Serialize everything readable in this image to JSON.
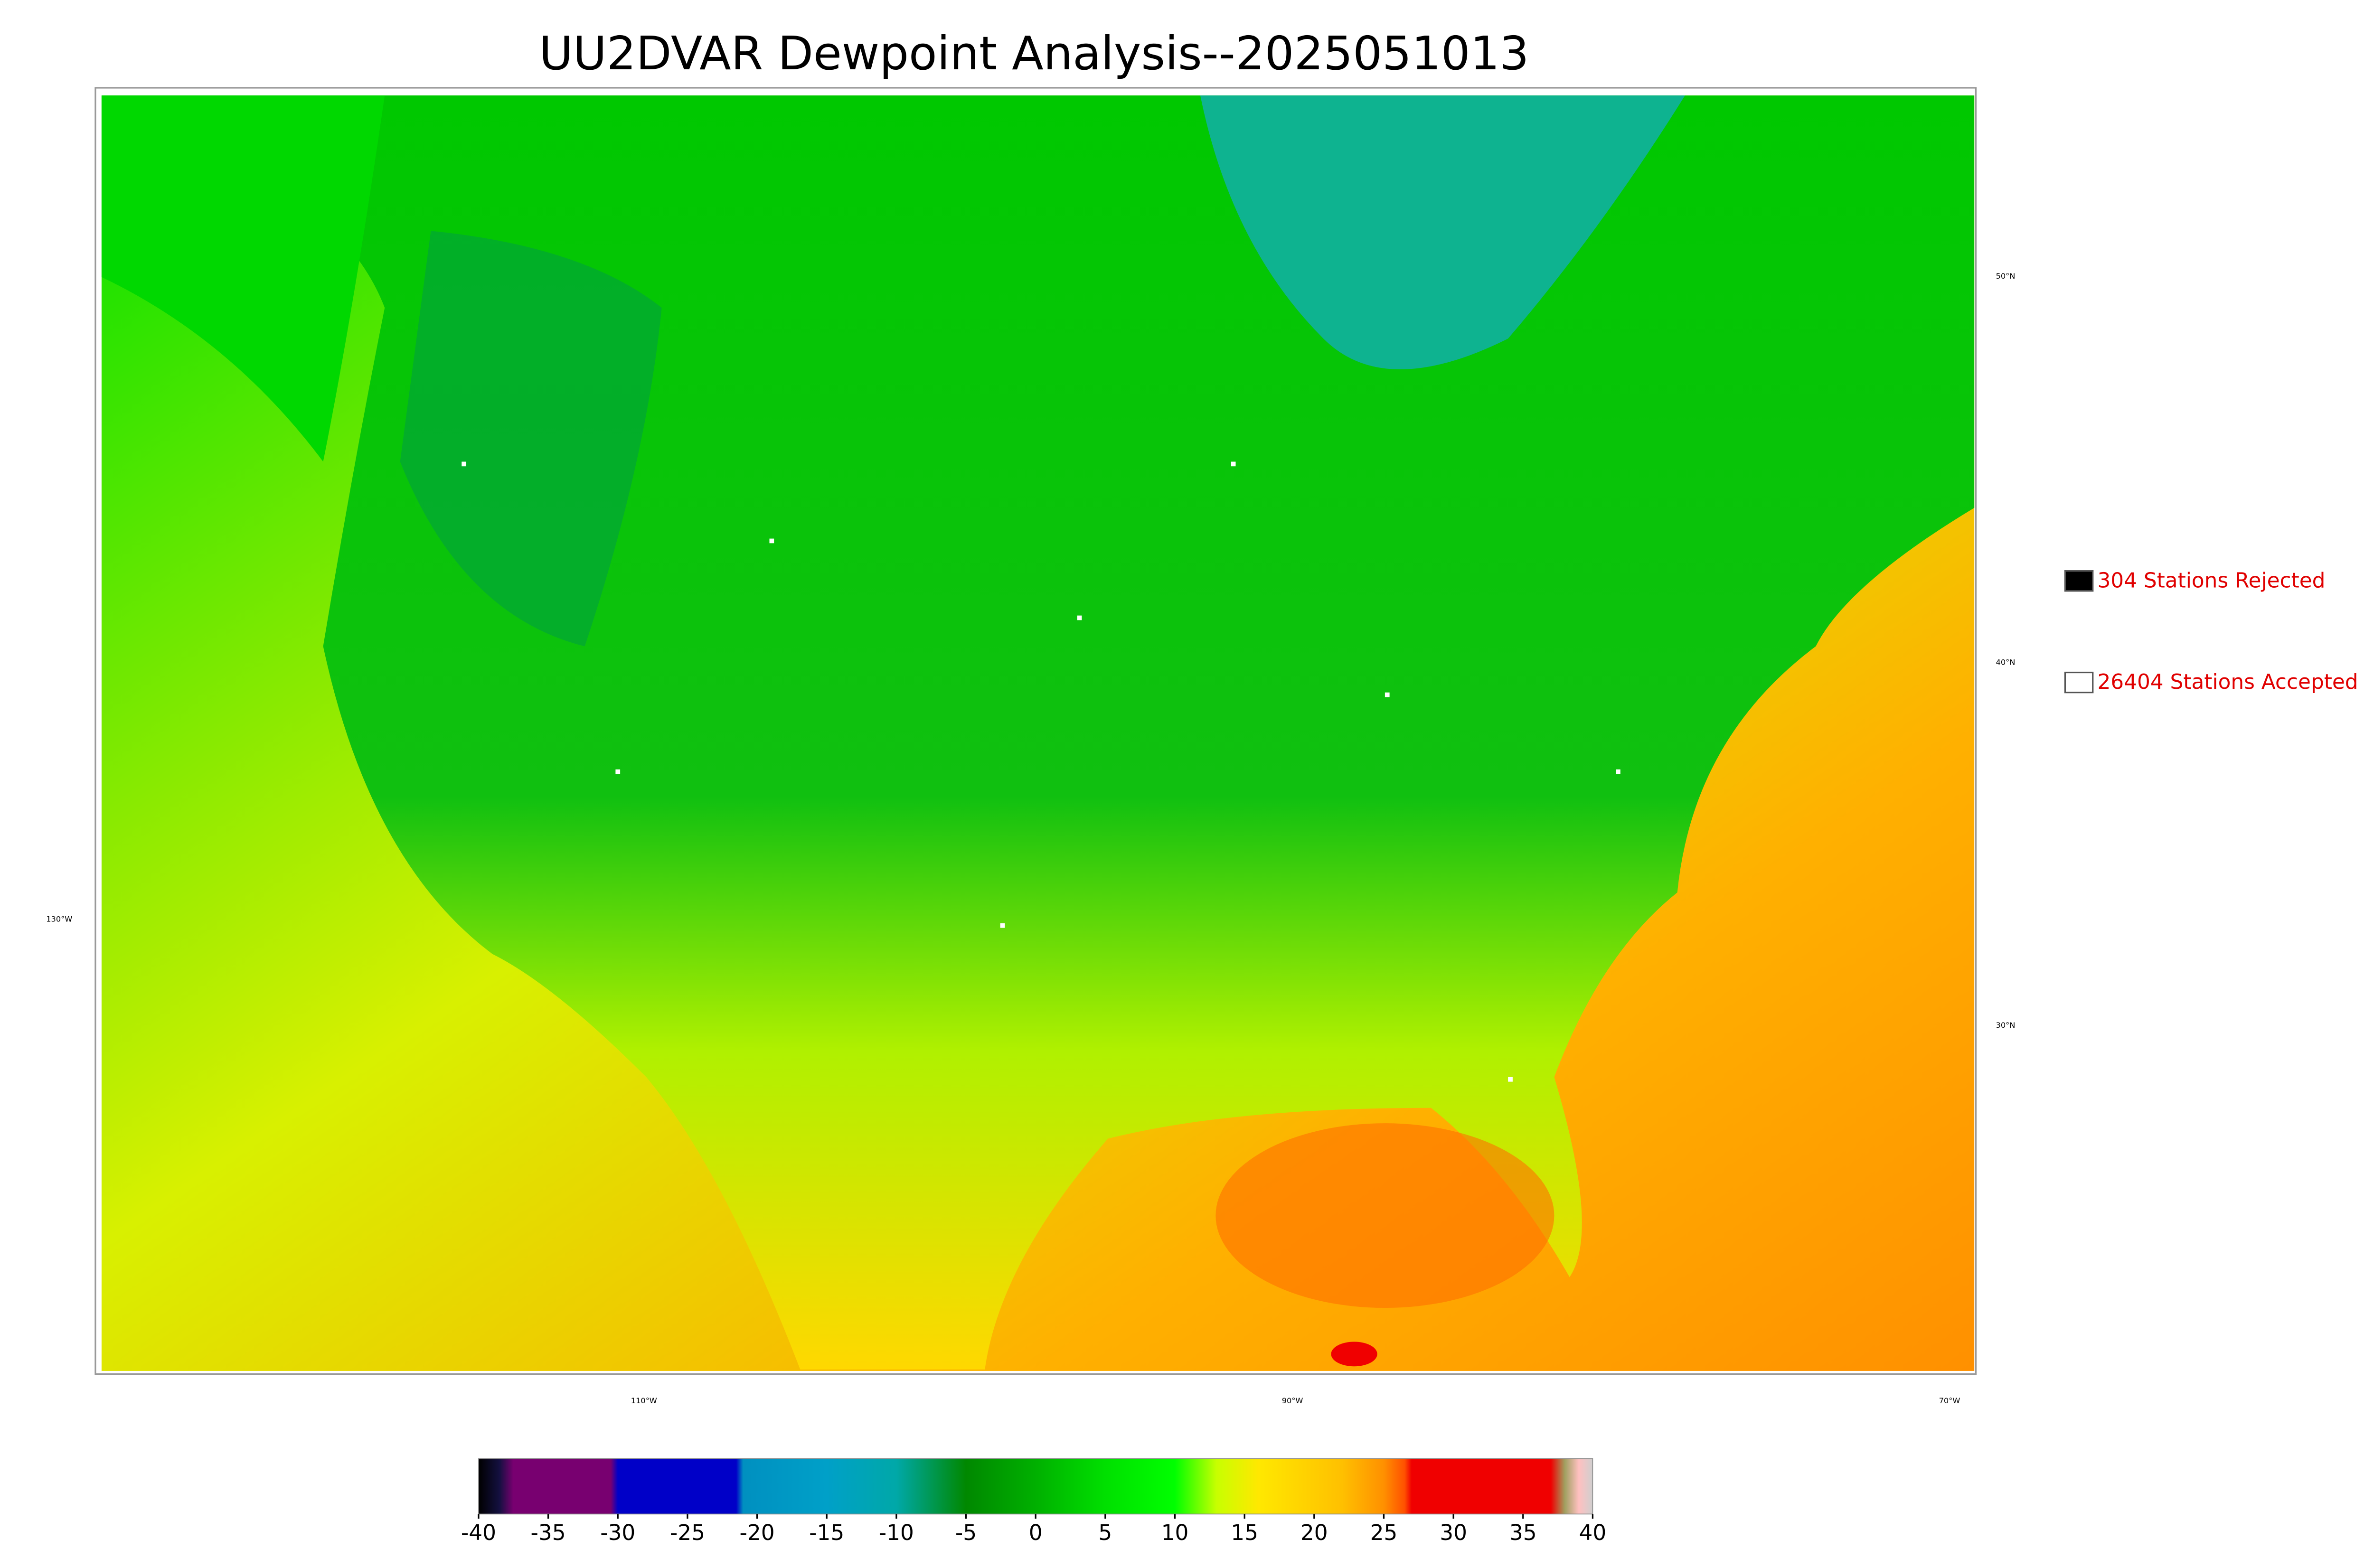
{
  "header": {
    "title": "UU2DVAR Dewpoint Analysis--2025051013"
  },
  "graticule": {
    "lat": [
      "50°N",
      "40°N",
      "30°N"
    ],
    "lon": [
      "130°W",
      "110°W",
      "90°W",
      "70°W"
    ]
  },
  "legend": [
    {
      "label": "304 Stations Rejected",
      "color": "#000000"
    },
    {
      "label": "26404 Stations Accepted",
      "color": "#ffffff"
    }
  ],
  "colorbar": {
    "lim": [
      -40,
      40
    ],
    "ticks": [
      -40,
      -35,
      -30,
      -25,
      -20,
      -15,
      -10,
      -5,
      0,
      5,
      10,
      15,
      20,
      25,
      30,
      35,
      40
    ],
    "stops": [
      {
        "value": -40,
        "color": "#000000"
      },
      {
        "value": -38.5,
        "color": "#141040"
      },
      {
        "value": -37.5,
        "color": "#780070"
      },
      {
        "value": -30.5,
        "color": "#780070"
      },
      {
        "value": -30,
        "color": "#0000c8"
      },
      {
        "value": -21.5,
        "color": "#0000c8"
      },
      {
        "value": -21,
        "color": "#0090c0"
      },
      {
        "value": -15,
        "color": "#00a0c8"
      },
      {
        "value": -10,
        "color": "#00a8a8"
      },
      {
        "value": -5,
        "color": "#008800"
      },
      {
        "value": 0,
        "color": "#00b000"
      },
      {
        "value": 5,
        "color": "#00e000"
      },
      {
        "value": 10,
        "color": "#00ff00"
      },
      {
        "value": 13,
        "color": "#c8ff00"
      },
      {
        "value": 16,
        "color": "#ffe800"
      },
      {
        "value": 22,
        "color": "#ffc000"
      },
      {
        "value": 25,
        "color": "#ff9000"
      },
      {
        "value": 26.5,
        "color": "#ff5000"
      },
      {
        "value": 27,
        "color": "#f00000"
      },
      {
        "value": 37,
        "color": "#f00000"
      },
      {
        "value": 38,
        "color": "#a0a060"
      },
      {
        "value": 39,
        "color": "#ffc0c0"
      },
      {
        "value": 40,
        "color": "#d0d0d0"
      }
    ]
  }
}
